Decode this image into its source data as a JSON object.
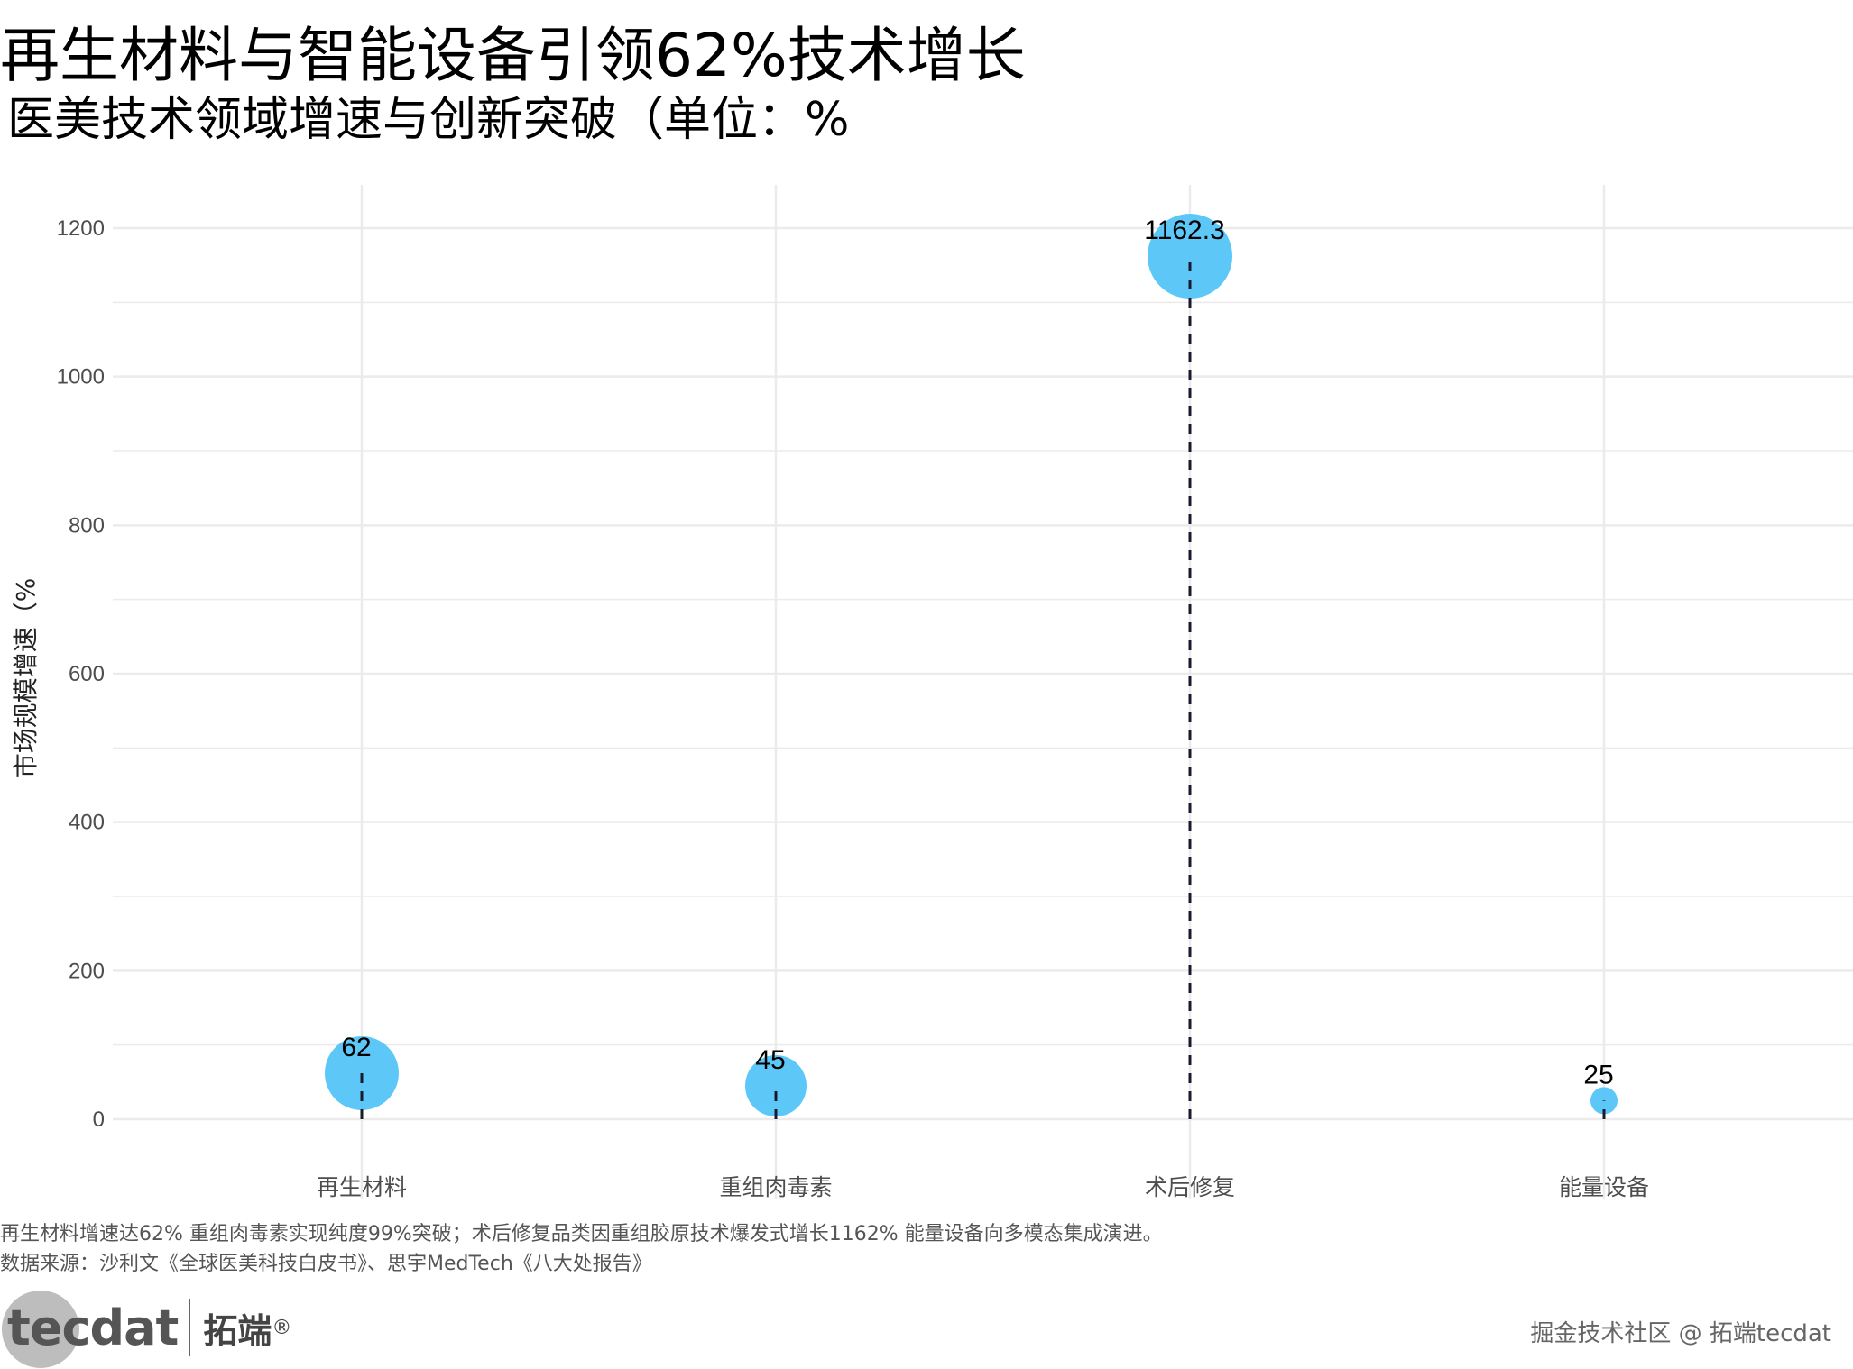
{
  "title": "再生材料与智能设备引领62%技术增长",
  "subtitle": "医美技术领域增速与创新突破（单位：%",
  "caption_line1": "再生材料增速达62% 重组肉毒素实现纯度99%突破；术后修复品类因重组胶原技术爆发式增长1162% 能量设备向多模态集成演进。",
  "caption_line2": "数据来源：沙利文《全球医美科技白皮书》、思宇MedTech《八大处报告》",
  "logo": {
    "mark": "tecdat",
    "cn": "拓端",
    "reg": "®"
  },
  "watermark": "掘金技术社区 @ 拓端tecdat",
  "colors": {
    "point": "#4FC3F7",
    "grid": "#ebebeb",
    "stem": "#1a1a2e"
  },
  "chart_data": {
    "type": "scatter",
    "title": "再生材料与智能设备引领62%技术增长",
    "subtitle": "医美技术领域增速与创新突破（单位：%",
    "xlabel": "",
    "ylabel": "市场规模增速（%",
    "categories": [
      "再生材料",
      "重组肉毒素",
      "术后修复",
      "能量设备"
    ],
    "values": [
      62,
      45,
      1162.3,
      25
    ],
    "value_labels": [
      "62",
      "45",
      "1162.3",
      "25"
    ],
    "yticks": [
      0,
      200,
      400,
      600,
      800,
      1000,
      1200
    ],
    "ylim": [
      -55,
      1260
    ],
    "grid": true,
    "point_size_by_value": true,
    "stems": "dashed"
  }
}
